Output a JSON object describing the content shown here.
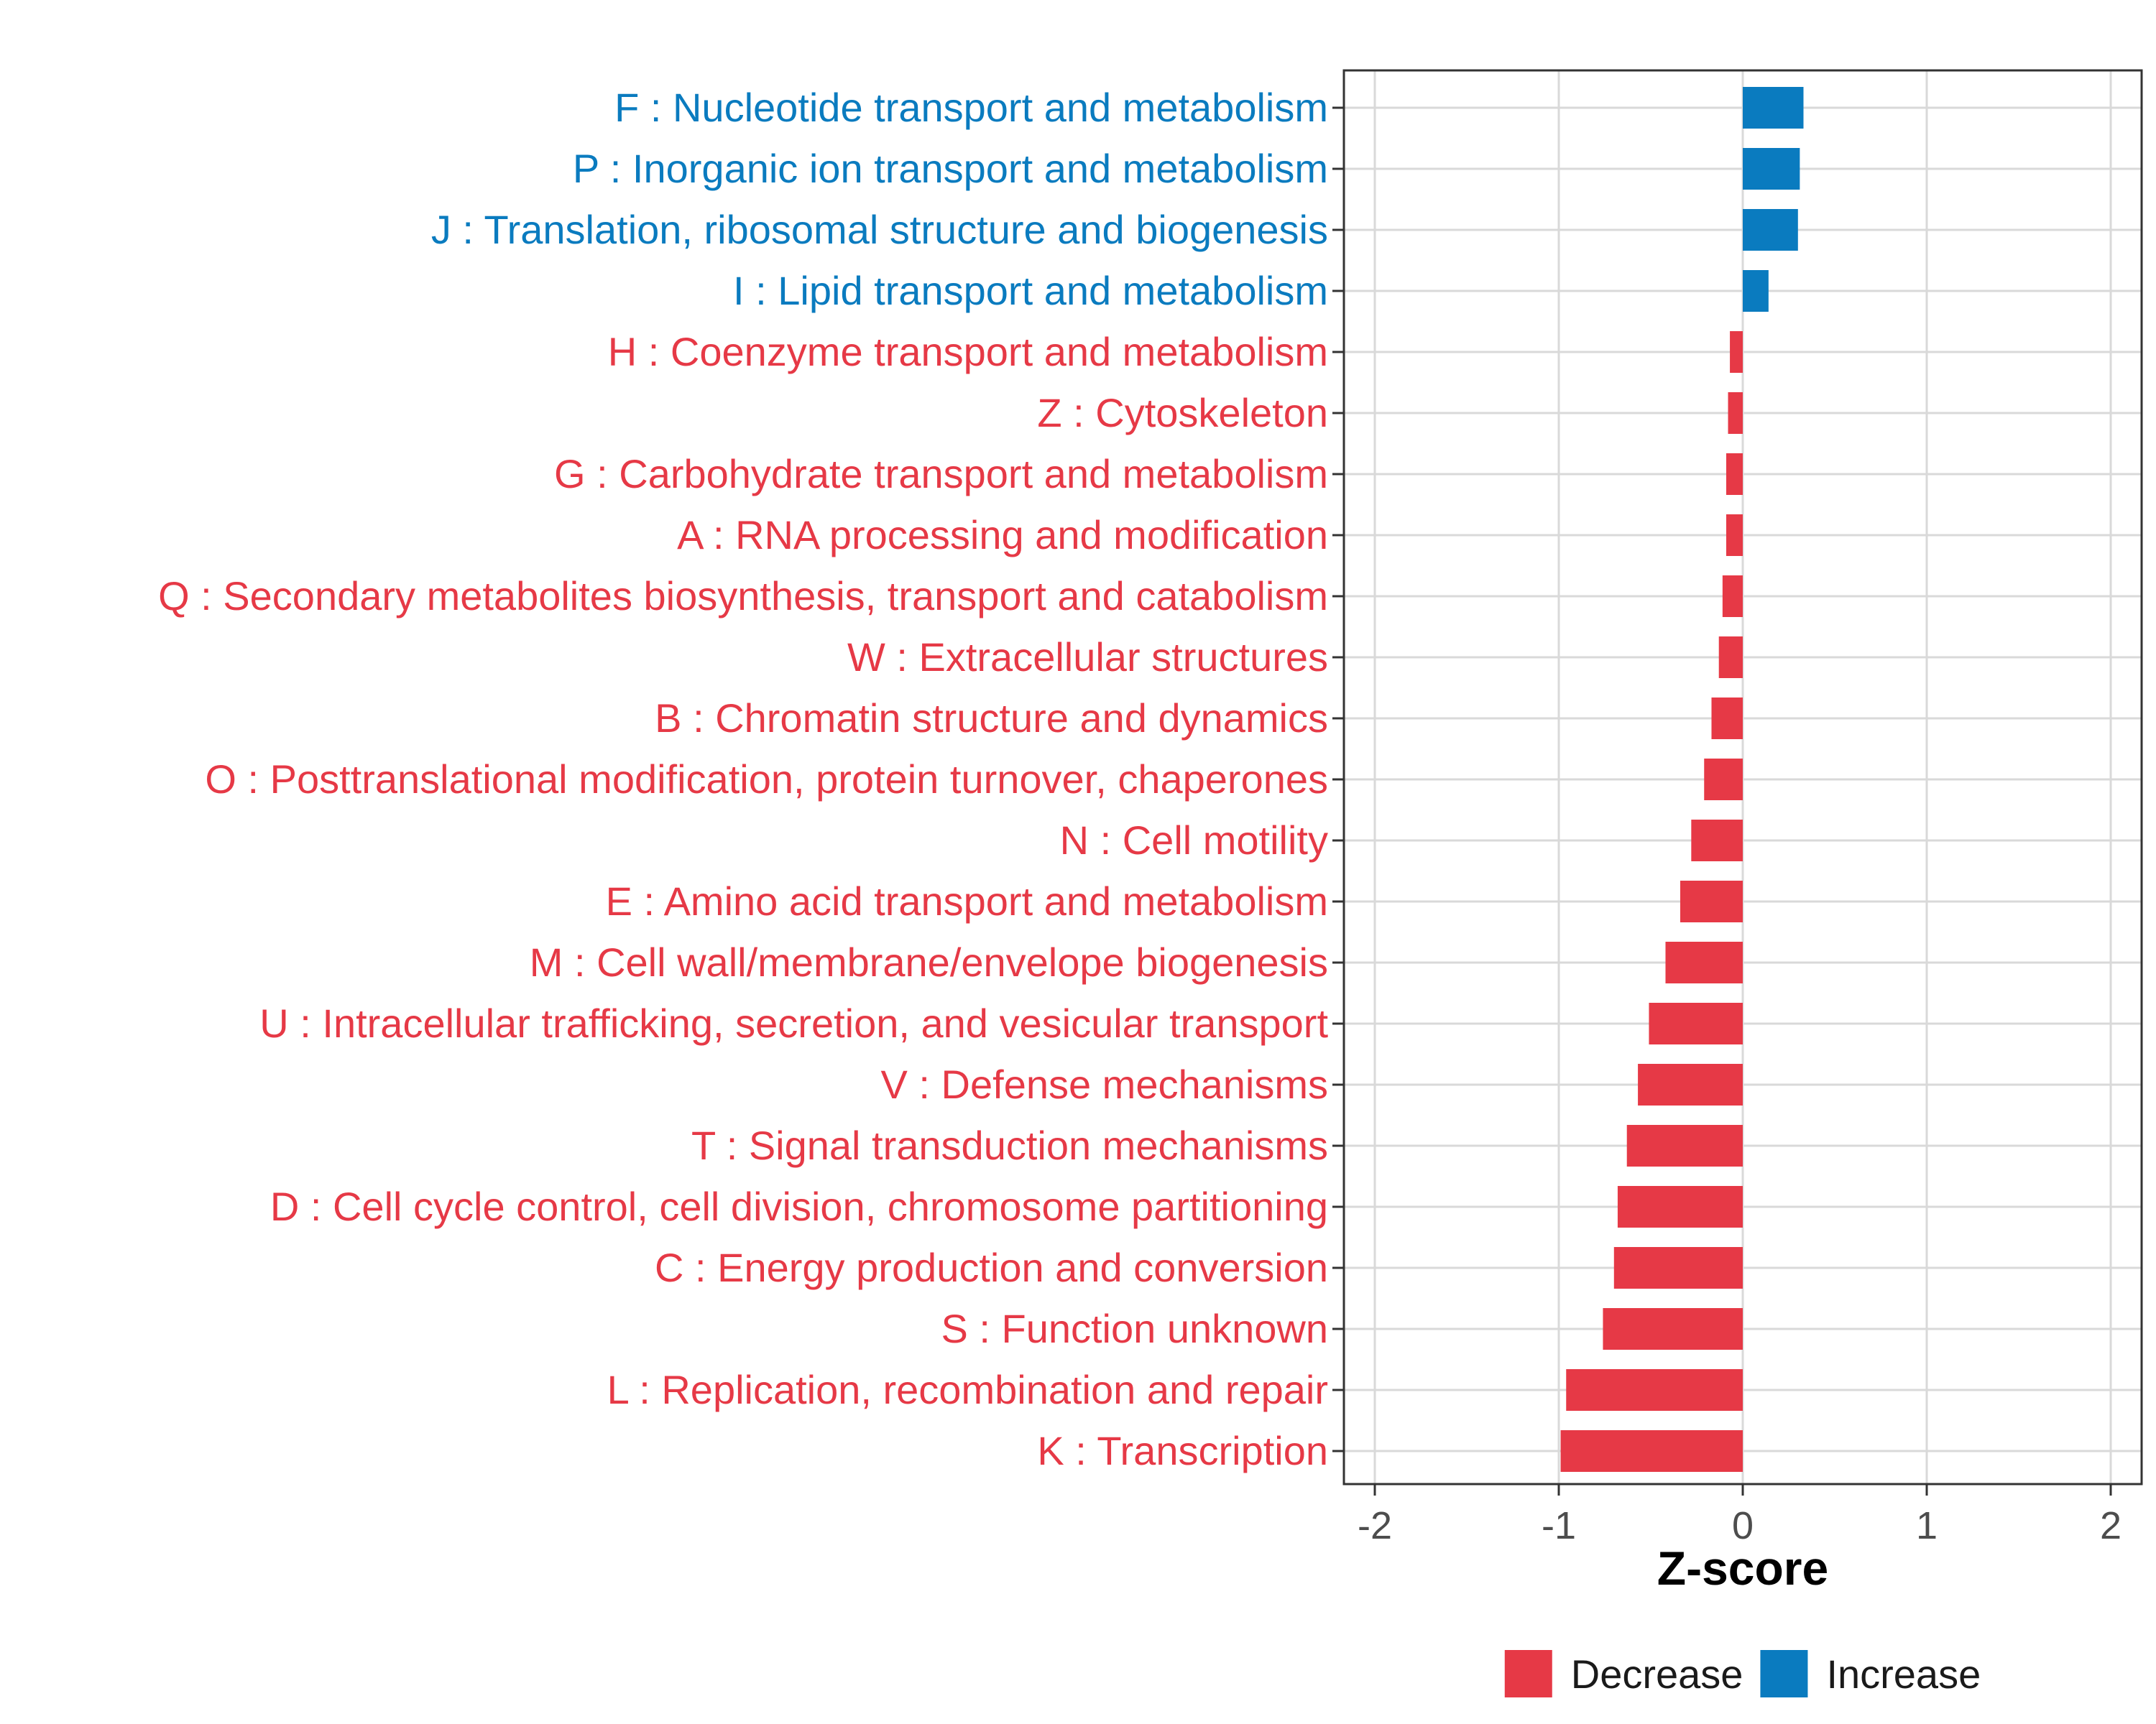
{
  "chart_data": {
    "type": "bar",
    "orientation": "horizontal",
    "xlabel": "Z-score",
    "xlim": [
      -2.2,
      2.2
    ],
    "xticks": [
      -2,
      -1,
      0,
      1,
      2
    ],
    "xtick_labels": [
      "-2",
      "-1",
      "0",
      "1",
      "2"
    ],
    "grid": true,
    "legend_position": "bottom",
    "legend": [
      {
        "name": "Decrease",
        "color": "#e63946"
      },
      {
        "name": "Increase",
        "color": "#0a7bbf"
      }
    ],
    "categories": [
      "F : Nucleotide transport and metabolism",
      "P : Inorganic ion transport and metabolism",
      "J : Translation, ribosomal structure and biogenesis",
      "I : Lipid transport and metabolism",
      "H : Coenzyme transport and metabolism",
      "Z : Cytoskeleton",
      "G : Carbohydrate transport and metabolism",
      "A : RNA processing and modification",
      "Q : Secondary metabolites biosynthesis, transport and catabolism",
      "W : Extracellular structures",
      "B : Chromatin structure and dynamics",
      "O : Posttranslational modification, protein turnover, chaperones",
      "N : Cell motility",
      "E : Amino acid transport and metabolism",
      "M : Cell wall/membrane/envelope biogenesis",
      "U : Intracellular trafficking, secretion, and vesicular transport",
      "V : Defense mechanisms",
      "T : Signal transduction mechanisms",
      "D : Cell cycle control, cell division, chromosome partitioning",
      "C : Energy production and conversion",
      "S : Function unknown",
      "L : Replication, recombination and repair",
      "K : Transcription"
    ],
    "values": [
      0.33,
      0.31,
      0.3,
      0.14,
      -0.07,
      -0.08,
      -0.09,
      -0.09,
      -0.11,
      -0.13,
      -0.17,
      -0.21,
      -0.28,
      -0.34,
      -0.42,
      -0.51,
      -0.57,
      -0.63,
      -0.68,
      -0.7,
      -0.76,
      -0.96,
      -0.99
    ],
    "groups": [
      "Increase",
      "Increase",
      "Increase",
      "Increase",
      "Decrease",
      "Decrease",
      "Decrease",
      "Decrease",
      "Decrease",
      "Decrease",
      "Decrease",
      "Decrease",
      "Decrease",
      "Decrease",
      "Decrease",
      "Decrease",
      "Decrease",
      "Decrease",
      "Decrease",
      "Decrease",
      "Decrease",
      "Decrease",
      "Decrease"
    ]
  }
}
